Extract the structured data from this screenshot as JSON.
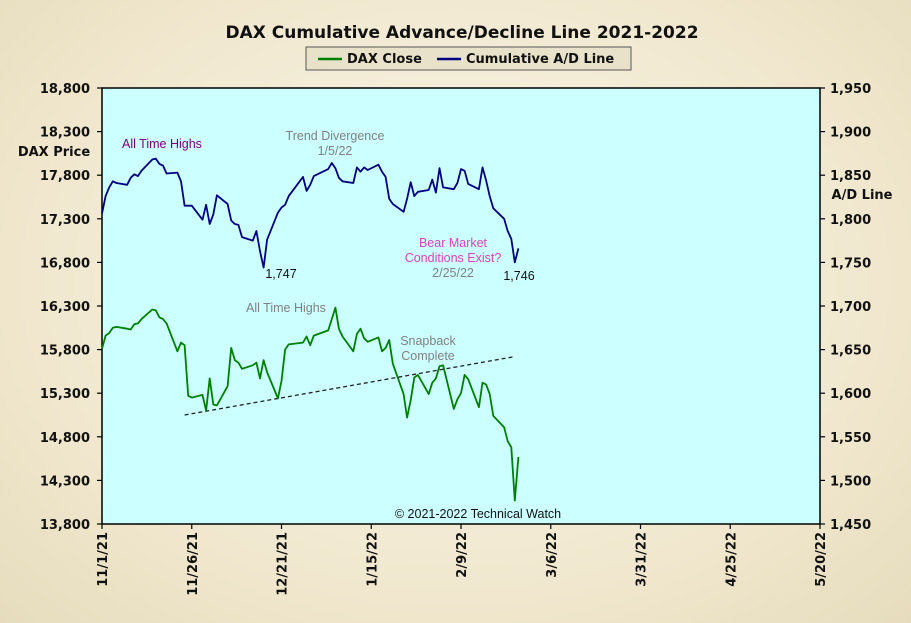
{
  "chart_data": {
    "type": "line",
    "title": "DAX Cumulative Advance/Decline Line 2021-2022",
    "ylabel_left": "DAX Price",
    "ylabel_right": "A/D Line",
    "plot_background": "#ccffff",
    "ylim_left": [
      13800,
      18800
    ],
    "yticks_left": [
      "18,800",
      "18,300",
      "17,800",
      "17,300",
      "16,800",
      "16,300",
      "15,800",
      "15,300",
      "14,800",
      "14,300",
      "13,800"
    ],
    "ylim_right": [
      1450,
      1950
    ],
    "yticks_right": [
      "1,950",
      "1,900",
      "1,850",
      "1,800",
      "1,750",
      "1,700",
      "1,650",
      "1,600",
      "1,550",
      "1,500",
      "1,450"
    ],
    "xlim": [
      "2021-11-01",
      "2022-05-20"
    ],
    "xticks": [
      "11/1/21",
      "11/26/21",
      "12/21/21",
      "1/15/22",
      "2/9/22",
      "3/6/22",
      "3/31/22",
      "4/25/22",
      "5/20/22"
    ],
    "legend": {
      "placement": "top-center",
      "entries": [
        {
          "label": "DAX Close",
          "color": "#008000"
        },
        {
          "label": "Cumulative A/D Line",
          "color": "#000080"
        }
      ]
    },
    "series": [
      {
        "name": "DAX Close",
        "axis": "left",
        "color": "#008000",
        "x": [
          "2021-11-01",
          "2021-11-02",
          "2021-11-03",
          "2021-11-04",
          "2021-11-05",
          "2021-11-08",
          "2021-11-09",
          "2021-11-10",
          "2021-11-11",
          "2021-11-12",
          "2021-11-15",
          "2021-11-16",
          "2021-11-17",
          "2021-11-18",
          "2021-11-19",
          "2021-11-22",
          "2021-11-23",
          "2021-11-24",
          "2021-11-25",
          "2021-11-26",
          "2021-11-29",
          "2021-11-30",
          "2021-12-01",
          "2021-12-02",
          "2021-12-03",
          "2021-12-06",
          "2021-12-07",
          "2021-12-08",
          "2021-12-09",
          "2021-12-10",
          "2021-12-13",
          "2021-12-14",
          "2021-12-15",
          "2021-12-16",
          "2021-12-17",
          "2021-12-20",
          "2021-12-21",
          "2021-12-22",
          "2021-12-23",
          "2021-12-27",
          "2021-12-28",
          "2021-12-29",
          "2021-12-30",
          "2022-01-03",
          "2022-01-04",
          "2022-01-05",
          "2022-01-06",
          "2022-01-07",
          "2022-01-10",
          "2022-01-11",
          "2022-01-12",
          "2022-01-13",
          "2022-01-14",
          "2022-01-17",
          "2022-01-18",
          "2022-01-19",
          "2022-01-20",
          "2022-01-21",
          "2022-01-24",
          "2022-01-25",
          "2022-01-26",
          "2022-01-27",
          "2022-01-28",
          "2022-01-31",
          "2022-02-01",
          "2022-02-02",
          "2022-02-03",
          "2022-02-04",
          "2022-02-07",
          "2022-02-08",
          "2022-02-09",
          "2022-02-10",
          "2022-02-11",
          "2022-02-14",
          "2022-02-15",
          "2022-02-16",
          "2022-02-17",
          "2022-02-18",
          "2022-02-21",
          "2022-02-22",
          "2022-02-23",
          "2022-02-24",
          "2022-02-25"
        ],
        "values": [
          15810,
          15960,
          15990,
          16050,
          16060,
          16040,
          16030,
          16090,
          16100,
          16150,
          16260,
          16250,
          16170,
          16150,
          16100,
          15780,
          15880,
          15850,
          15270,
          15250,
          15280,
          15100,
          15470,
          15170,
          15160,
          15380,
          15820,
          15680,
          15650,
          15580,
          15620,
          15650,
          15470,
          15680,
          15540,
          15240,
          15440,
          15800,
          15860,
          15880,
          15950,
          15850,
          15960,
          16020,
          16150,
          16280,
          16040,
          15950,
          15780,
          15980,
          16040,
          15930,
          15890,
          15940,
          15780,
          15820,
          15910,
          15640,
          15290,
          15020,
          15220,
          15480,
          15510,
          15290,
          15420,
          15470,
          15610,
          15620,
          15120,
          15230,
          15300,
          15510,
          15460,
          15140,
          15420,
          15400,
          15290,
          15040,
          14910,
          14750,
          14680,
          14070,
          14570
        ]
      },
      {
        "name": "Cumulative A/D Line",
        "axis": "right",
        "color": "#000080",
        "x": [
          "2021-11-01",
          "2021-11-02",
          "2021-11-03",
          "2021-11-04",
          "2021-11-05",
          "2021-11-08",
          "2021-11-09",
          "2021-11-10",
          "2021-11-11",
          "2021-11-12",
          "2021-11-15",
          "2021-11-16",
          "2021-11-17",
          "2021-11-18",
          "2021-11-19",
          "2021-11-22",
          "2021-11-23",
          "2021-11-24",
          "2021-11-25",
          "2021-11-26",
          "2021-11-29",
          "2021-11-30",
          "2021-12-01",
          "2021-12-02",
          "2021-12-03",
          "2021-12-06",
          "2021-12-07",
          "2021-12-08",
          "2021-12-09",
          "2021-12-10",
          "2021-12-13",
          "2021-12-14",
          "2021-12-15",
          "2021-12-16",
          "2021-12-17",
          "2021-12-20",
          "2021-12-21",
          "2021-12-22",
          "2021-12-23",
          "2021-12-27",
          "2021-12-28",
          "2021-12-29",
          "2021-12-30",
          "2022-01-03",
          "2022-01-04",
          "2022-01-05",
          "2022-01-06",
          "2022-01-07",
          "2022-01-10",
          "2022-01-11",
          "2022-01-12",
          "2022-01-13",
          "2022-01-14",
          "2022-01-17",
          "2022-01-18",
          "2022-01-19",
          "2022-01-20",
          "2022-01-21",
          "2022-01-24",
          "2022-01-25",
          "2022-01-26",
          "2022-01-27",
          "2022-01-28",
          "2022-01-31",
          "2022-02-01",
          "2022-02-02",
          "2022-02-03",
          "2022-02-04",
          "2022-02-07",
          "2022-02-08",
          "2022-02-09",
          "2022-02-10",
          "2022-02-11",
          "2022-02-14",
          "2022-02-15",
          "2022-02-16",
          "2022-02-17",
          "2022-02-18",
          "2022-02-21",
          "2022-02-22",
          "2022-02-23",
          "2022-02-24",
          "2022-02-25"
        ],
        "values": [
          1806,
          1826,
          1836,
          1843,
          1841,
          1839,
          1847,
          1851,
          1849,
          1855,
          1868,
          1869,
          1863,
          1861,
          1852,
          1853,
          1843,
          1815,
          1815,
          1815,
          1799,
          1816,
          1794,
          1805,
          1827,
          1817,
          1798,
          1794,
          1793,
          1779,
          1775,
          1786,
          1763,
          1744,
          1776,
          1807,
          1813,
          1816,
          1826,
          1848,
          1832,
          1839,
          1849,
          1857,
          1864,
          1858,
          1847,
          1843,
          1841,
          1859,
          1854,
          1859,
          1856,
          1862,
          1854,
          1848,
          1823,
          1817,
          1808,
          1823,
          1842,
          1826,
          1831,
          1833,
          1845,
          1830,
          1858,
          1836,
          1834,
          1841,
          1857,
          1855,
          1840,
          1834,
          1859,
          1844,
          1826,
          1812,
          1800,
          1786,
          1777,
          1750,
          1766
        ]
      }
    ],
    "trendline": {
      "style": "dashed",
      "color": "#222222",
      "x": [
        "2021-11-24",
        "2022-02-24"
      ],
      "left_values": [
        15050,
        15720
      ]
    },
    "annotations": {
      "all_time_highs_ad": {
        "text": "All Time Highs",
        "color": "#800080"
      },
      "trend_divergence_1": {
        "text": "Trend Divergence",
        "color": "#808080"
      },
      "trend_divergence_2": {
        "text": "1/5/22",
        "color": "#808080"
      },
      "low_1747": {
        "text": "1,747",
        "color": "#111111"
      },
      "bear_1": {
        "text": "Bear Market",
        "color": "#e040c0"
      },
      "bear_2": {
        "text": "Conditions Exist?",
        "color": "#e040c0"
      },
      "bear_3": {
        "text": "2/25/22",
        "color": "#808080"
      },
      "low_1746": {
        "text": "1,746",
        "color": "#111111"
      },
      "all_time_highs_dax": {
        "text": "All Time Highs",
        "color": "#808080"
      },
      "snapback_1": {
        "text": "Snapback",
        "color": "#808080"
      },
      "snapback_2": {
        "text": "Complete",
        "color": "#808080"
      },
      "copyright": {
        "text": "© 2021-2022 Technical Watch",
        "color": "#111111"
      }
    }
  }
}
